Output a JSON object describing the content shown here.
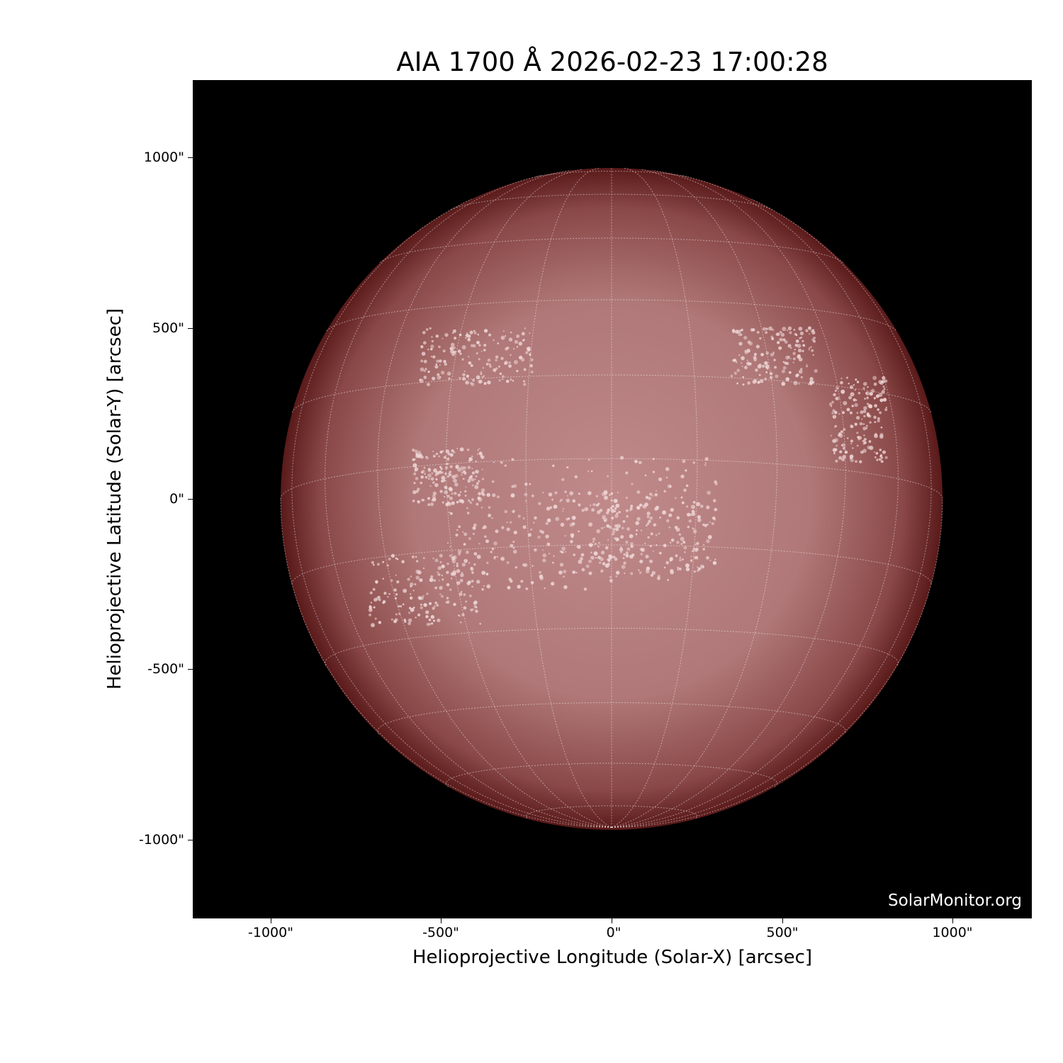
{
  "title": "AIA 1700 Å 2026-02-23 17:00:28",
  "watermark": "SolarMonitor.org",
  "axes": {
    "xlabel": "Helioprojective Longitude (Solar-X) [arcsec]",
    "ylabel": "Helioprojective Latitude (Solar-Y) [arcsec]",
    "xticks": [
      "-1000\"",
      "-500\"",
      "0\"",
      "500\"",
      "1000\""
    ],
    "yticks": [
      "1000\"",
      "500\"",
      "0\"",
      "-500\"",
      "-1000\""
    ]
  },
  "colors": {
    "background": "#000000",
    "disk_center": "#c08a8a",
    "disk_limb": "#5a1a1a",
    "grid": "#ffffff"
  }
}
